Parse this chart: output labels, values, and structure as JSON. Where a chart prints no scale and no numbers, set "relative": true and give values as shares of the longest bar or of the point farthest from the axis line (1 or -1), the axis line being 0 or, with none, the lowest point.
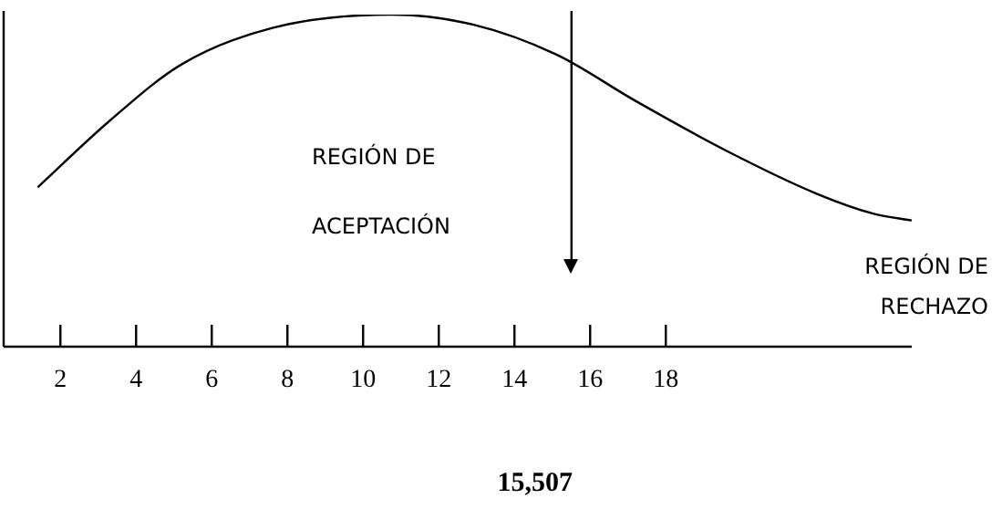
{
  "chart_data": {
    "type": "line",
    "relative": true,
    "x": [
      1.4,
      3.3,
      5.2,
      7.6,
      10.75,
      12.9,
      15.1,
      17.2,
      19.6,
      22,
      23.5,
      24.5
    ],
    "values": [
      0.48,
      0.68,
      0.85,
      0.96,
      1,
      0.97,
      0.88,
      0.74,
      0.59,
      0.46,
      0.4,
      0.38
    ],
    "color": "#000000",
    "xlim": [
      0.5,
      24.5
    ],
    "xticks": [
      2,
      4,
      6,
      8,
      10,
      12,
      14,
      16,
      18
    ],
    "grid": false,
    "legend": false,
    "marker": "none",
    "line_style": "solid",
    "ref_lines": [
      {
        "axis": "x",
        "value": 15.507,
        "label": "15,507",
        "color": "#000000"
      }
    ],
    "annotations": [
      "REGIÓN DE ACEPTACIÓN",
      "REGIÓN DE RECHAZO"
    ]
  }
}
